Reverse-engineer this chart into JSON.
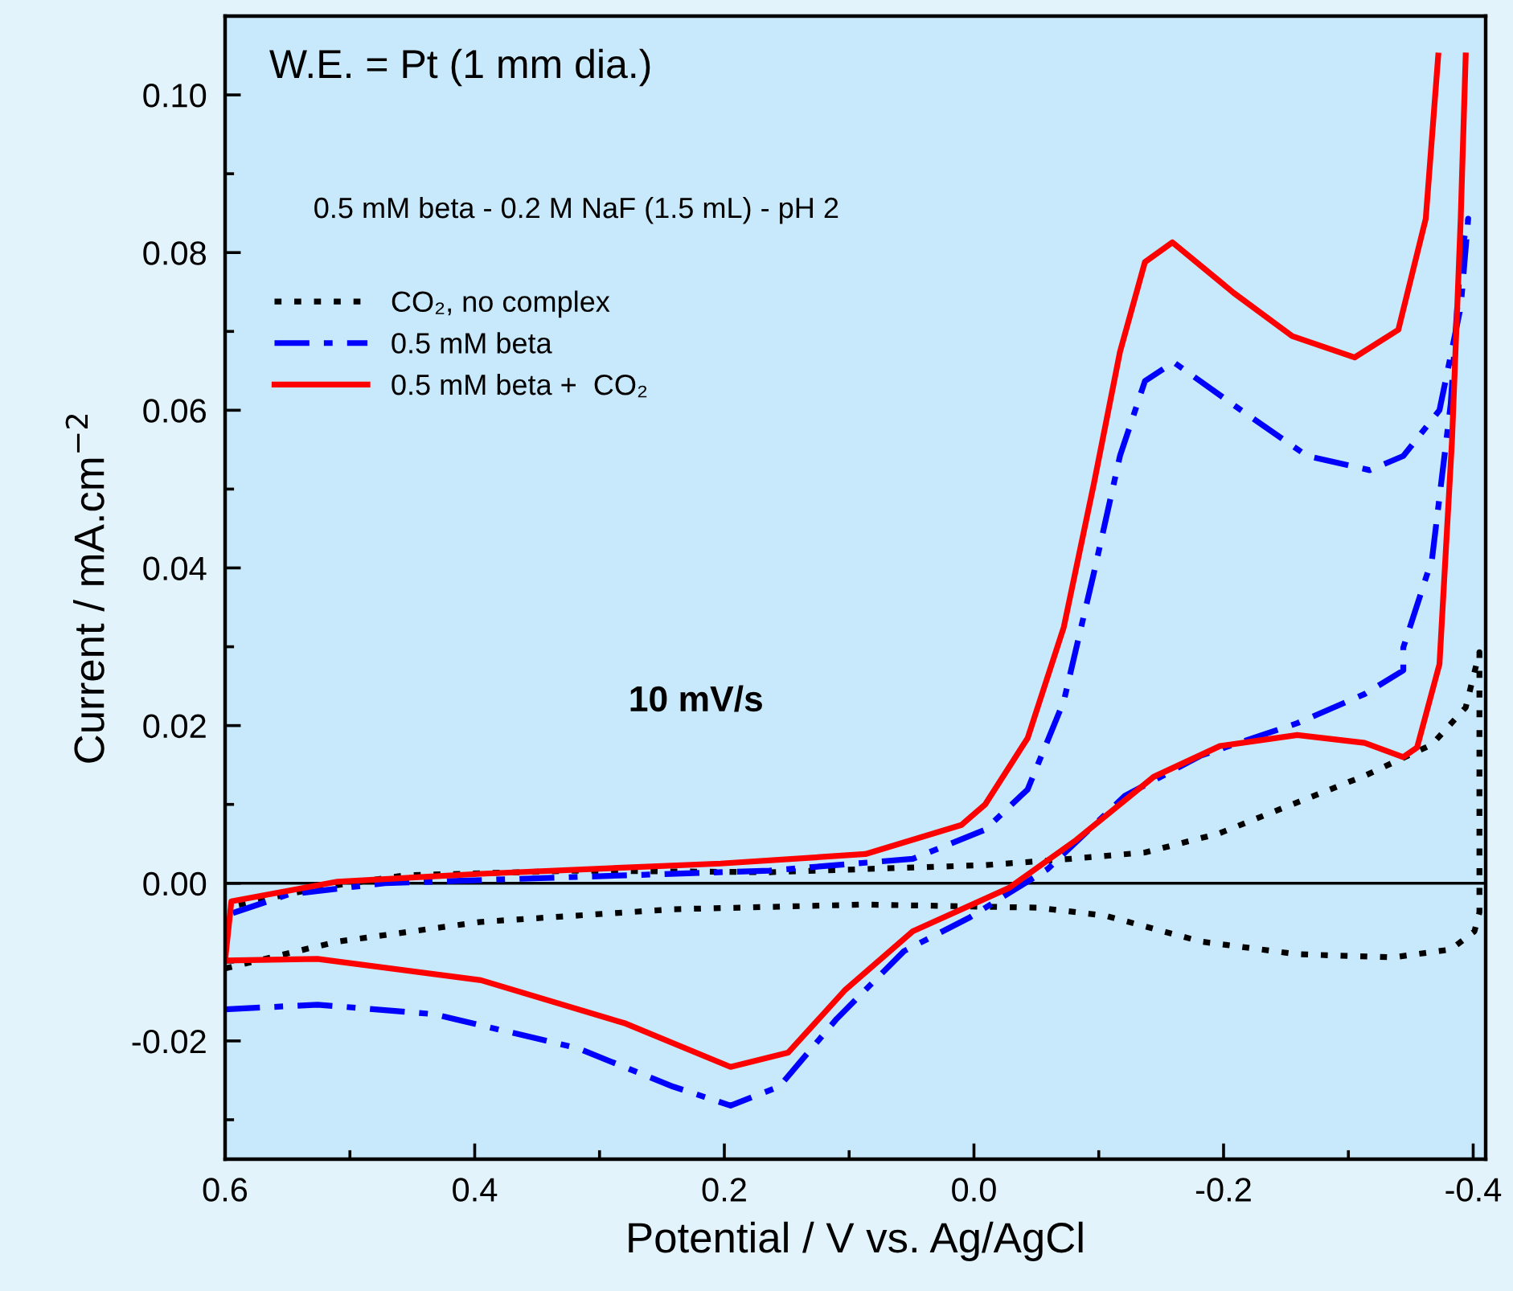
{
  "chart_data": {
    "type": "line",
    "xlabel": "Potential / V vs. Ag/AgCl",
    "ylabel": "Current / mA.cm$^{−2}$",
    "annotations": [
      "W.E. = Pt (1 mm dia.)",
      "0.5 mM beta - 0.2 M NaF (1.5 mL) - pH 2",
      "10 mV/s"
    ],
    "xlim": [
      0.6,
      -0.41
    ],
    "ylim": [
      -0.035,
      0.11
    ],
    "xticks": [
      {
        "value": 0.6,
        "label": "0.6"
      },
      {
        "value": 0.5,
        "label": null
      },
      {
        "value": 0.4,
        "label": "0.4"
      },
      {
        "value": 0.3,
        "label": null
      },
      {
        "value": 0.2,
        "label": "0.2"
      },
      {
        "value": 0.1,
        "label": null
      },
      {
        "value": 0.0,
        "label": "0.0"
      },
      {
        "value": -0.1,
        "label": null
      },
      {
        "value": -0.2,
        "label": "-0.2"
      },
      {
        "value": -0.3,
        "label": null
      },
      {
        "value": -0.4,
        "label": "-0.4"
      }
    ],
    "yticks": [
      {
        "value": -0.03,
        "label": null
      },
      {
        "value": -0.02,
        "label": "-0.02"
      },
      {
        "value": -0.01,
        "label": null
      },
      {
        "value": 0.0,
        "label": "0.00"
      },
      {
        "value": 0.01,
        "label": null
      },
      {
        "value": 0.02,
        "label": "0.02"
      },
      {
        "value": 0.03,
        "label": null
      },
      {
        "value": 0.04,
        "label": "0.04"
      },
      {
        "value": 0.05,
        "label": null
      },
      {
        "value": 0.06,
        "label": "0.06"
      },
      {
        "value": 0.07,
        "label": null
      },
      {
        "value": 0.08,
        "label": "0.08"
      },
      {
        "value": 0.09,
        "label": null
      },
      {
        "value": 0.1,
        "label": "0.10"
      }
    ],
    "grid": false,
    "legend": "top left",
    "marker": "none",
    "ref_lines": [
      {
        "axis": "y",
        "value": 0,
        "color": "#000000",
        "line_style": "solid"
      }
    ],
    "series": [
      {
        "name": "CO₂, no complex",
        "color": "#000000",
        "line_style": "dotted",
        "x": [
          0.6,
          0.51,
          0.395,
          0.241,
          0.087,
          -0.051,
          -0.105,
          -0.182,
          -0.259,
          -0.336,
          -0.382,
          -0.401,
          -0.405,
          -0.405,
          -0.394,
          -0.367,
          -0.314,
          -0.255,
          -0.196,
          -0.137,
          -0.078,
          -0.009,
          0.164,
          0.318,
          0.456,
          0.526,
          0.6
        ],
        "values": [
          -0.0108,
          -0.0074,
          -0.0049,
          -0.0033,
          -0.0027,
          -0.0031,
          -0.0041,
          -0.0074,
          -0.009,
          -0.0094,
          -0.0084,
          -0.0061,
          -0.0037,
          0.0293,
          0.0223,
          0.0176,
          0.0137,
          0.01,
          0.0063,
          0.0039,
          0.0031,
          0.0023,
          0.0014,
          0.0016,
          0.001,
          -0.0006,
          -0.0031
        ]
      },
      {
        "name": "0.5 mM beta",
        "color": "#0000ff",
        "line_style": "dashdot",
        "x": [
          0.6,
          0.526,
          0.433,
          0.318,
          0.241,
          0.195,
          0.156,
          0.11,
          0.056,
          0.003,
          -0.059,
          -0.121,
          -0.182,
          -0.259,
          -0.313,
          -0.344,
          -0.344,
          -0.367,
          -0.382,
          -0.39,
          -0.396,
          -0.39,
          -0.373,
          -0.344,
          -0.317,
          -0.267,
          -0.214,
          -0.16,
          -0.137,
          -0.117,
          -0.096,
          -0.072,
          -0.043,
          -0.009,
          0.049,
          0.164,
          0.318,
          0.472,
          0.549,
          0.6
        ],
        "values": [
          -0.016,
          -0.0154,
          -0.0166,
          -0.0209,
          -0.0258,
          -0.0282,
          -0.0258,
          -0.0172,
          -0.0086,
          -0.0043,
          0.0018,
          0.0111,
          0.0162,
          0.0203,
          0.024,
          0.027,
          0.0299,
          0.0411,
          0.0608,
          0.0796,
          0.0843,
          0.0731,
          0.06,
          0.0542,
          0.0524,
          0.0542,
          0.06,
          0.0661,
          0.0637,
          0.0542,
          0.0393,
          0.0231,
          0.0119,
          0.0068,
          0.0031,
          0.0016,
          0.0008,
          0.0,
          -0.0014,
          -0.0041
        ]
      },
      {
        "name": "0.5 mM beta +  CO₂",
        "color": "#ff0000",
        "line_style": "solid",
        "x": [
          0.6,
          0.526,
          0.395,
          0.279,
          0.195,
          0.149,
          0.103,
          0.049,
          -0.028,
          -0.082,
          -0.144,
          -0.197,
          -0.259,
          -0.313,
          -0.344,
          -0.355,
          -0.373,
          -0.383,
          -0.39,
          -0.394,
          null,
          -0.372,
          -0.362,
          -0.34,
          -0.305,
          -0.255,
          -0.208,
          -0.159,
          -0.137,
          -0.117,
          -0.096,
          -0.072,
          -0.043,
          -0.009,
          0.01,
          0.087,
          0.203,
          0.395,
          0.51,
          0.595,
          0.6
        ],
        "values": [
          -0.0098,
          -0.0096,
          -0.0123,
          -0.0178,
          -0.0233,
          -0.0215,
          -0.0135,
          -0.0061,
          -0.0006,
          0.0055,
          0.0135,
          0.0174,
          0.0188,
          0.0178,
          0.016,
          0.0172,
          0.0278,
          0.0561,
          0.0843,
          0.105,
          null,
          0.105,
          0.0843,
          0.0702,
          0.0667,
          0.0694,
          0.0749,
          0.0813,
          0.0788,
          0.0674,
          0.0506,
          0.0325,
          0.0184,
          0.01,
          0.0074,
          0.0037,
          0.0025,
          0.0012,
          0.0002,
          -0.0023,
          -0.0098
        ]
      }
    ]
  }
}
